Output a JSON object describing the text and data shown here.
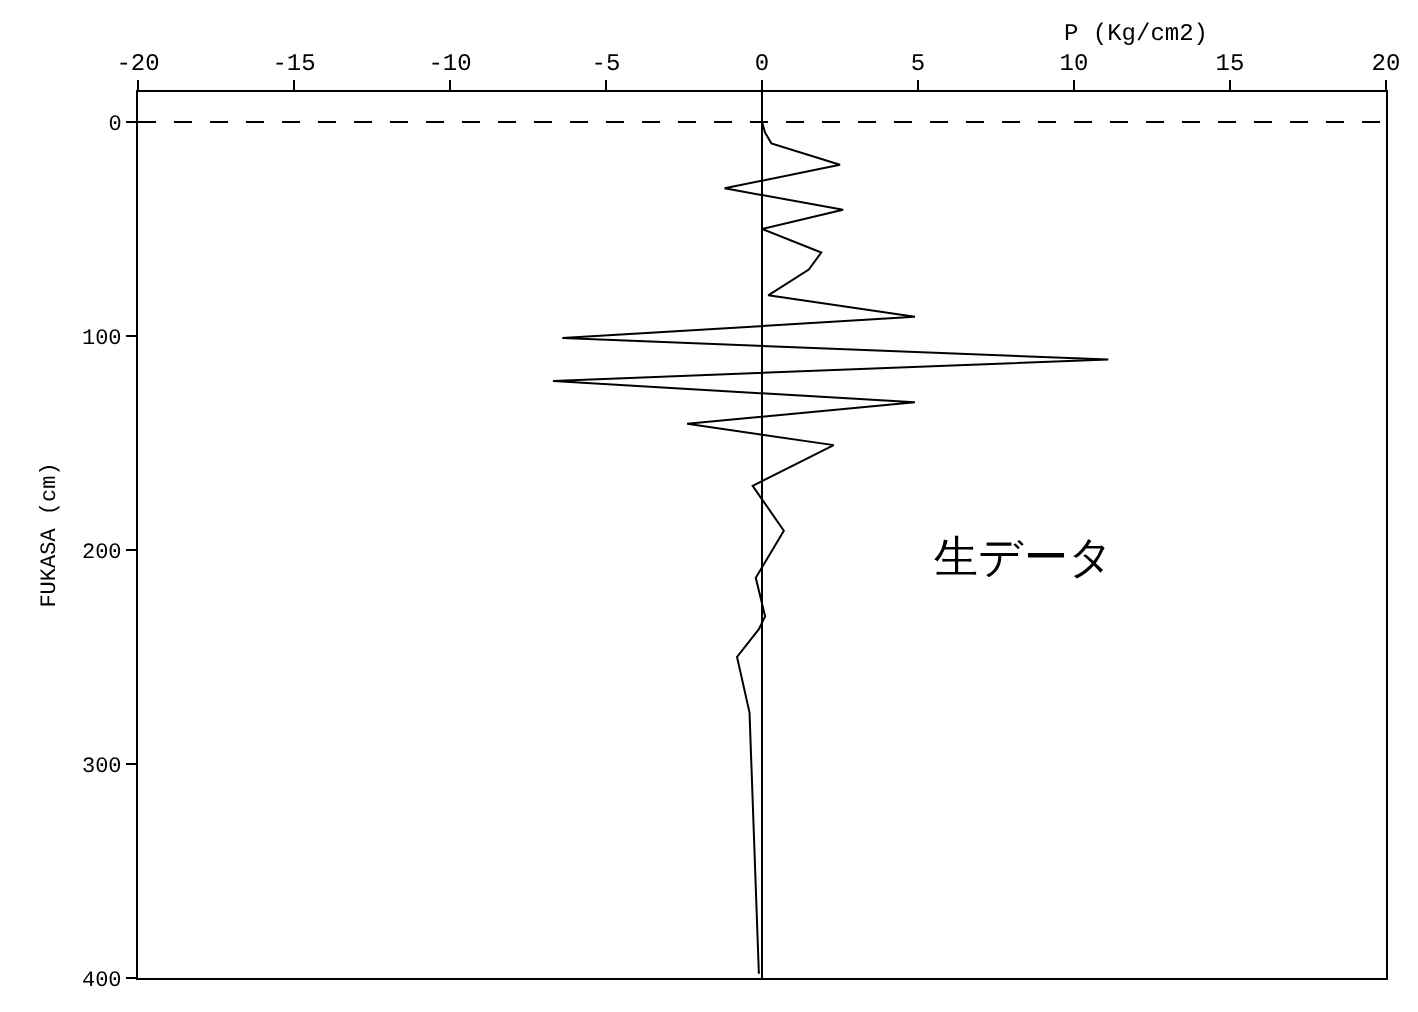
{
  "chart_data": {
    "type": "line",
    "xlabel": "P (Kg/cm2)",
    "ylabel": "FUKASA (cm)",
    "annotations": [
      "生データ"
    ],
    "series": [
      {
        "color": "#000000",
        "x": [
          0,
          0.1,
          0.3,
          2.5,
          -1.2,
          2.6,
          0,
          1.9,
          1.5,
          0.2,
          4.9,
          -6.4,
          11.1,
          -6.7,
          4.9,
          -2.4,
          2.3,
          -0.3,
          0.7,
          -0.2,
          0.1,
          -0.1,
          -0.8,
          -0.4,
          -0.1
        ],
        "values": [
          0,
          5,
          10,
          20,
          31,
          41,
          50,
          61,
          69,
          81,
          91,
          101,
          111,
          121,
          131,
          141,
          151,
          170,
          191,
          213,
          231,
          237,
          250,
          276,
          398
        ]
      }
    ],
    "xlim": [
      -20,
      20
    ],
    "xticks": [
      -20,
      -15,
      -10,
      -5,
      0,
      5,
      10,
      15,
      20
    ],
    "ylim": [
      400,
      -14
    ],
    "yticks": [
      0,
      100,
      200,
      300,
      400
    ],
    "ref_lines": [
      {
        "axis": "y",
        "value": 0,
        "line_style": "dashed",
        "color": "#000000"
      },
      {
        "axis": "x",
        "value": 0,
        "line_style": "solid",
        "color": "#000000"
      }
    ],
    "grid": false,
    "marker": "none",
    "line_style": "solid"
  }
}
